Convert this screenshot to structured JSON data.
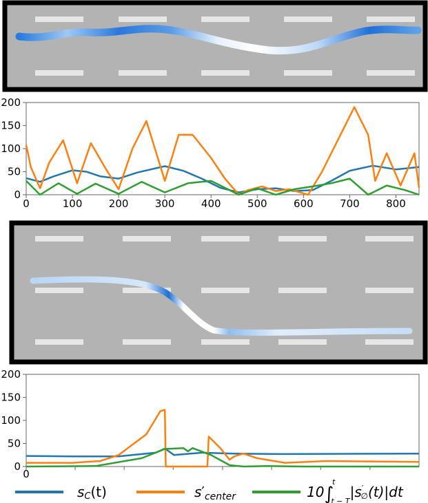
{
  "colors": {
    "road": "#b3b3b3",
    "road_border": "#000000",
    "lane_mark": "#e6e6e6",
    "sc": "#1f77b4",
    "center": "#ff7f0e",
    "integral": "#2ca02c",
    "traj_strong": "#1a6fd8",
    "traj_light": "#cfe4f8"
  },
  "legend": [
    {
      "name": "sC(t)",
      "color": "#1f77b4"
    },
    {
      "name": "s'center",
      "color": "#ff7f0e"
    },
    {
      "name": "10∫t−T..t |s'∅(t)| dt",
      "color": "#2ca02c"
    }
  ],
  "chart_data": [
    {
      "type": "line",
      "xlim": [
        0,
        850
      ],
      "ylim": [
        0,
        200
      ],
      "xticks": [
        0,
        100,
        200,
        300,
        400,
        500,
        600,
        700,
        800
      ],
      "yticks": [
        0,
        50,
        100,
        150,
        200
      ],
      "grid": false,
      "series": [
        {
          "name": "sC(t)",
          "x": [
            0,
            30,
            60,
            100,
            130,
            160,
            200,
            240,
            300,
            340,
            380,
            420,
            460,
            500,
            540,
            580,
            620,
            660,
            700,
            750,
            800,
            850
          ],
          "y": [
            36,
            28,
            40,
            53,
            50,
            40,
            35,
            48,
            62,
            52,
            35,
            15,
            5,
            12,
            14,
            8,
            10,
            30,
            52,
            63,
            55,
            60
          ]
        },
        {
          "name": "s'center",
          "x": [
            0,
            10,
            30,
            50,
            80,
            110,
            140,
            170,
            200,
            230,
            260,
            300,
            330,
            360,
            400,
            430,
            460,
            480,
            510,
            540,
            570,
            610,
            640,
            680,
            710,
            740,
            755,
            780,
            810,
            840,
            850
          ],
          "y": [
            108,
            60,
            14,
            70,
            118,
            25,
            112,
            60,
            12,
            100,
            160,
            30,
            130,
            130,
            80,
            35,
            0,
            10,
            18,
            8,
            12,
            0,
            50,
            130,
            190,
            130,
            30,
            90,
            20,
            90,
            15
          ]
        },
        {
          "name": "10∫t−T..t |s'∅(t)| dt",
          "x": [
            0,
            30,
            70,
            110,
            150,
            200,
            250,
            300,
            350,
            400,
            460,
            500,
            540,
            580,
            620,
            660,
            700,
            740,
            780,
            820,
            850
          ],
          "y": [
            30,
            0,
            25,
            2,
            24,
            2,
            28,
            5,
            25,
            30,
            0,
            14,
            0,
            12,
            18,
            25,
            35,
            0,
            20,
            10,
            0
          ]
        }
      ]
    },
    {
      "type": "line",
      "xlim": [
        0,
        850
      ],
      "ylim": [
        0,
        200
      ],
      "yticks": [
        0,
        50,
        100,
        150,
        200
      ],
      "xtick_labels_visible": [
        "0"
      ],
      "grid": false,
      "series": [
        {
          "name": "sC(t)",
          "x": [
            0,
            100,
            200,
            280,
            300,
            320,
            380,
            450,
            550,
            850
          ],
          "y": [
            23,
            22,
            22,
            30,
            39,
            25,
            30,
            28,
            27,
            28
          ]
        },
        {
          "name": "s'center",
          "x": [
            0,
            100,
            160,
            200,
            260,
            290,
            300,
            302,
            310,
            392,
            395,
            400,
            420,
            440,
            450,
            470,
            500,
            560,
            650,
            850
          ],
          "y": [
            8,
            8,
            12,
            25,
            70,
            120,
            123,
            0,
            0,
            0,
            65,
            60,
            40,
            15,
            22,
            28,
            18,
            8,
            12,
            10
          ]
        },
        {
          "name": "10∫t−T..t |s'∅(t)| dt",
          "x": [
            0,
            150,
            250,
            300,
            340,
            350,
            360,
            400,
            440,
            470,
            520,
            600,
            850
          ],
          "y": [
            0,
            1,
            18,
            38,
            40,
            33,
            40,
            25,
            3,
            0,
            1,
            0,
            0
          ]
        }
      ]
    }
  ]
}
